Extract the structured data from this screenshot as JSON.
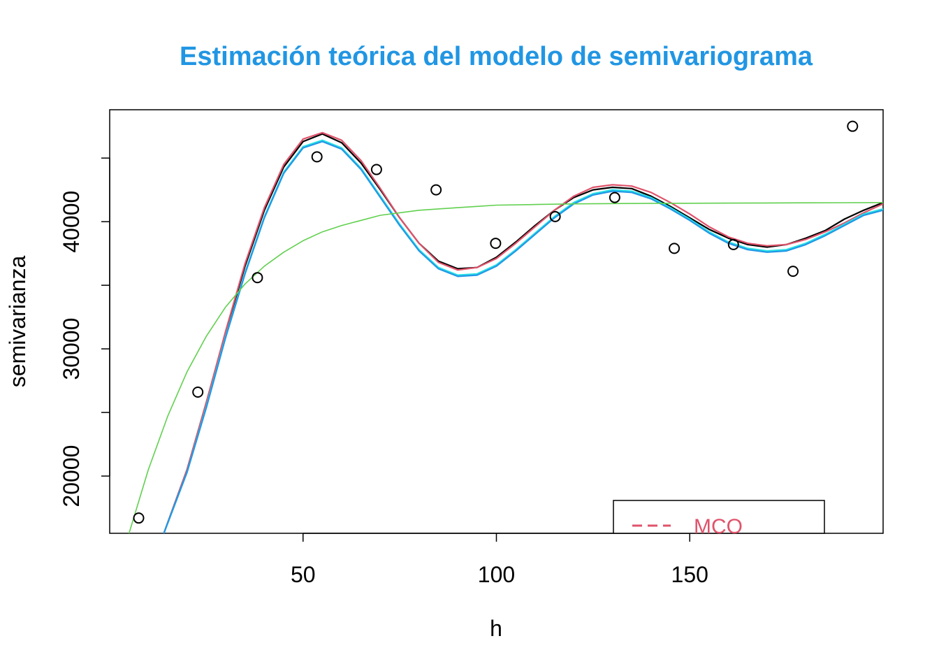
{
  "chart_data": {
    "type": "scatter",
    "title": "Estimación teórica del modelo de semivariograma",
    "title_color": "#2196E3",
    "xlabel": "h",
    "ylabel": "semivarianza",
    "xlim": [
      0,
      200
    ],
    "ylim": [
      15500,
      48800
    ],
    "x_ticks": [
      50,
      100,
      150
    ],
    "x_tick_labels": [
      "50",
      "100",
      "150"
    ],
    "y_ticks": [
      20000,
      25000,
      30000,
      35000,
      40000,
      45000
    ],
    "y_tick_labels": [
      "20000",
      "",
      "30000",
      "",
      "40000",
      ""
    ],
    "grid": false,
    "legend_position": "bottom-right",
    "points": [
      {
        "x": 7.5,
        "y": 16700
      },
      {
        "x": 22.8,
        "y": 26600
      },
      {
        "x": 38.2,
        "y": 35600
      },
      {
        "x": 53.6,
        "y": 45100
      },
      {
        "x": 69.0,
        "y": 44100
      },
      {
        "x": 84.4,
        "y": 42500
      },
      {
        "x": 99.8,
        "y": 38300
      },
      {
        "x": 115.2,
        "y": 40400
      },
      {
        "x": 130.6,
        "y": 41900
      },
      {
        "x": 146.0,
        "y": 37900
      },
      {
        "x": 161.3,
        "y": 38200
      },
      {
        "x": 176.7,
        "y": 36100
      },
      {
        "x": 192.1,
        "y": 47500
      }
    ],
    "series": [
      {
        "color": "#000000",
        "x": [
          14,
          20,
          25,
          30,
          35,
          40,
          45,
          50,
          55,
          60,
          65,
          70,
          75,
          80,
          85,
          90,
          95,
          100,
          105,
          110,
          115,
          120,
          125,
          130,
          135,
          140,
          145,
          150,
          155,
          160,
          165,
          170,
          175,
          180,
          185,
          190,
          195,
          200
        ],
        "y": [
          15500,
          20500,
          25800,
          31300,
          36500,
          40900,
          44300,
          46300,
          46900,
          46200,
          44600,
          42500,
          40300,
          38300,
          36900,
          36300,
          36400,
          37200,
          38400,
          39700,
          40900,
          41900,
          42500,
          42700,
          42600,
          42000,
          41200,
          40300,
          39400,
          38700,
          38200,
          38000,
          38200,
          38700,
          39300,
          40200,
          40900,
          41500
        ]
      },
      {
        "color": "#DF536B",
        "x": [
          14,
          20,
          25,
          30,
          35,
          40,
          45,
          50,
          55,
          60,
          65,
          70,
          75,
          80,
          85,
          90,
          95,
          100,
          105,
          110,
          115,
          120,
          125,
          130,
          135,
          140,
          145,
          150,
          155,
          160,
          165,
          170,
          175,
          180,
          185,
          190,
          195,
          200
        ],
        "y": [
          15500,
          20500,
          25800,
          31400,
          36700,
          41100,
          44500,
          46500,
          47000,
          46400,
          44800,
          42600,
          40300,
          38300,
          36800,
          36200,
          36400,
          37100,
          38300,
          39600,
          40900,
          42000,
          42700,
          42900,
          42800,
          42300,
          41500,
          40600,
          39600,
          38800,
          38300,
          38100,
          38200,
          38600,
          39200,
          39900,
          40700,
          41400
        ]
      },
      {
        "color": "#28E2E5",
        "x": [
          14,
          20,
          25,
          30,
          35,
          40,
          45,
          50,
          55,
          60,
          65,
          70,
          75,
          80,
          85,
          90,
          95,
          100,
          105,
          110,
          115,
          120,
          125,
          130,
          135,
          140,
          145,
          150,
          155,
          160,
          165,
          170,
          175,
          180,
          185,
          190,
          195,
          200
        ],
        "y": [
          15500,
          20300,
          25500,
          31000,
          36000,
          40400,
          43900,
          45900,
          46400,
          45800,
          44200,
          42000,
          39800,
          37800,
          36400,
          35800,
          35900,
          36600,
          37800,
          39100,
          40400,
          41500,
          42200,
          42500,
          42400,
          41900,
          41100,
          40200,
          39200,
          38400,
          37900,
          37700,
          37800,
          38300,
          39000,
          39800,
          40600,
          41000
        ]
      },
      {
        "color": "#2297E6",
        "x": [
          14,
          20,
          25,
          30,
          35,
          40,
          45,
          50,
          55,
          60,
          65,
          70,
          75,
          80,
          85,
          90,
          95,
          100,
          105,
          110,
          115,
          120,
          125,
          130,
          135,
          140,
          145,
          150,
          155,
          160,
          165,
          170,
          175,
          180,
          185,
          190,
          195,
          200
        ],
        "y": [
          15500,
          20300,
          25400,
          30900,
          35900,
          40300,
          43800,
          45800,
          46300,
          45700,
          44100,
          41900,
          39700,
          37700,
          36300,
          35700,
          35800,
          36500,
          37700,
          39000,
          40300,
          41400,
          42100,
          42400,
          42300,
          41800,
          41000,
          40100,
          39100,
          38300,
          37800,
          37600,
          37700,
          38200,
          38900,
          39700,
          40500,
          40900
        ]
      },
      {
        "color": "#61D04F",
        "x": [
          5,
          10,
          15,
          20,
          25,
          30,
          35,
          40,
          45,
          50,
          55,
          60,
          65,
          70,
          75,
          80,
          85,
          90,
          95,
          100,
          110,
          120,
          130,
          140,
          150,
          160,
          170,
          180,
          190,
          200
        ],
        "y": [
          15500,
          20500,
          24700,
          28200,
          31000,
          33300,
          35100,
          36500,
          37600,
          38500,
          39200,
          39700,
          40100,
          40500,
          40700,
          40900,
          41000,
          41100,
          41200,
          41300,
          41350,
          41400,
          41420,
          41440,
          41450,
          41460,
          41470,
          41480,
          41490,
          41500
        ]
      }
    ],
    "legend": [
      {
        "label": "MCO",
        "color": "#DF536B",
        "line": "dashed"
      }
    ]
  }
}
